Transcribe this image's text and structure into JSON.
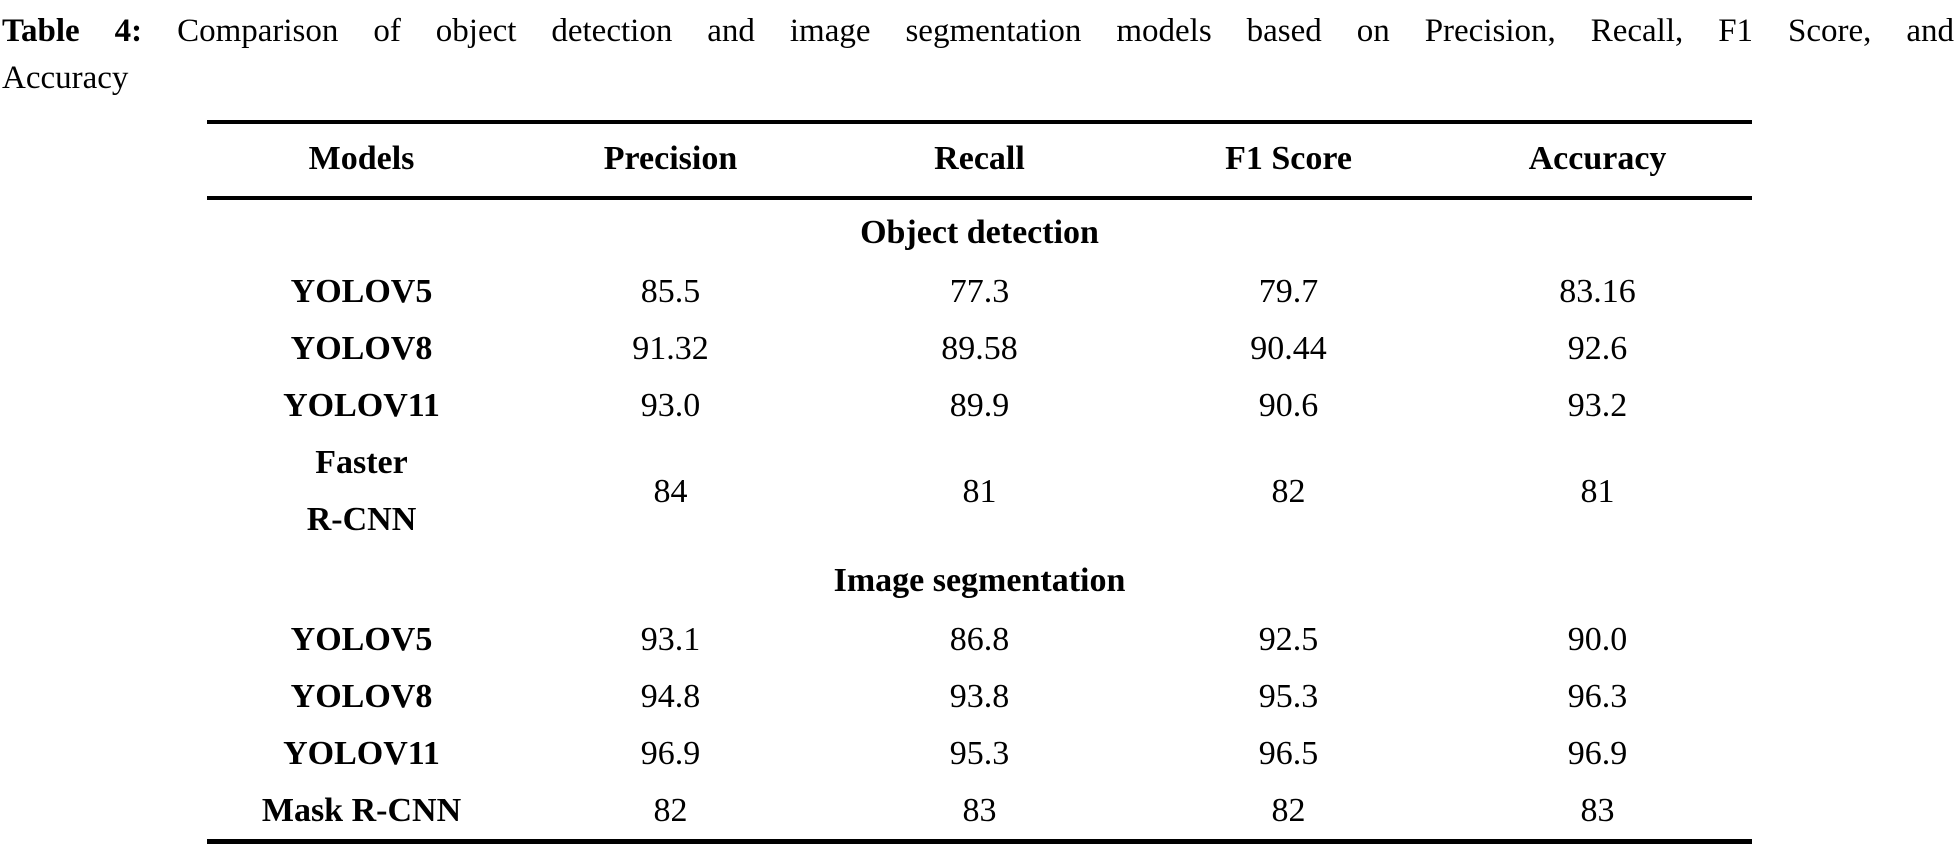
{
  "caption": {
    "label": "Table 4:",
    "line1": "Comparison of object detection and image segmentation models based on Precision, Recall, F1 Score, and",
    "line2": "Accuracy"
  },
  "table": {
    "columns": [
      "Models",
      "Precision",
      "Recall",
      "F1 Score",
      "Accuracy"
    ],
    "sections": [
      {
        "title": "Object detection",
        "rows": [
          {
            "model": "YOLOV5",
            "values": [
              "85.5",
              "77.3",
              "79.7",
              "83.16"
            ]
          },
          {
            "model": "YOLOV8",
            "values": [
              "91.32",
              "89.58",
              "90.44",
              "92.6"
            ]
          },
          {
            "model": "YOLOV11",
            "values": [
              "93.0",
              "89.9",
              "90.6",
              "93.2"
            ]
          },
          {
            "model": "Faster\nR-CNN",
            "values": [
              "84",
              "81",
              "82",
              "81"
            ]
          }
        ]
      },
      {
        "title": "Image segmentation",
        "rows": [
          {
            "model": "YOLOV5",
            "values": [
              "93.1",
              "86.8",
              "92.5",
              "90.0"
            ]
          },
          {
            "model": "YOLOV8",
            "values": [
              "94.8",
              "93.8",
              "95.3",
              "96.3"
            ]
          },
          {
            "model": "YOLOV11",
            "values": [
              "96.9",
              "95.3",
              "96.5",
              "96.9"
            ]
          },
          {
            "model": "Mask R-CNN",
            "values": [
              "82",
              "83",
              "82",
              "83"
            ]
          }
        ]
      }
    ]
  },
  "chart_data": {
    "type": "table",
    "title": "Table 4: Comparison of object detection and image segmentation models based on Precision, Recall, F1 Score, and Accuracy",
    "columns": [
      "Models",
      "Precision",
      "Recall",
      "F1 Score",
      "Accuracy"
    ],
    "groups": [
      {
        "group": "Object detection",
        "rows": [
          [
            "YOLOV5",
            85.5,
            77.3,
            79.7,
            83.16
          ],
          [
            "YOLOV8",
            91.32,
            89.58,
            90.44,
            92.6
          ],
          [
            "YOLOV11",
            93.0,
            89.9,
            90.6,
            93.2
          ],
          [
            "Faster R-CNN",
            84,
            81,
            82,
            81
          ]
        ]
      },
      {
        "group": "Image segmentation",
        "rows": [
          [
            "YOLOV5",
            93.1,
            86.8,
            92.5,
            90.0
          ],
          [
            "YOLOV8",
            94.8,
            93.8,
            95.3,
            96.3
          ],
          [
            "YOLOV11",
            96.9,
            95.3,
            96.5,
            96.9
          ],
          [
            "Mask R-CNN",
            82,
            83,
            82,
            83
          ]
        ]
      }
    ]
  }
}
